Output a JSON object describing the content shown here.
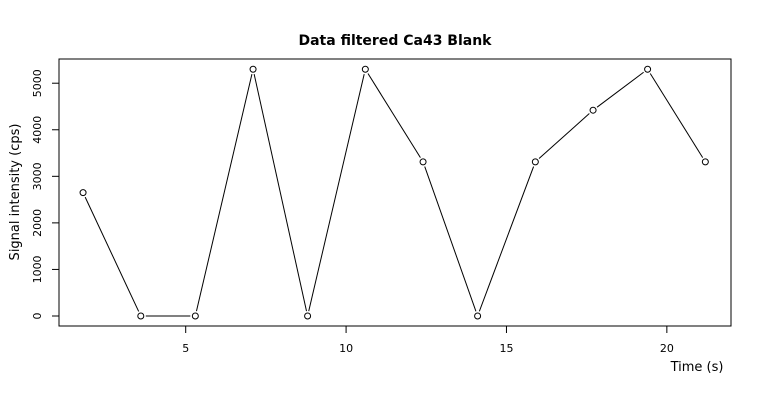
{
  "chart_data": {
    "type": "line",
    "title": "Data filtered Ca43 Blank",
    "xlabel": "Time (s)",
    "ylabel": "Signal intensity (cps)",
    "xlim": [
      1.05,
      22.0
    ],
    "ylim": [
      -215,
      5520
    ],
    "x_ticks": [
      5,
      10,
      15,
      20
    ],
    "x_tick_labels": [
      "5",
      "10",
      "15",
      "20"
    ],
    "y_ticks": [
      0,
      1000,
      2000,
      3000,
      4000,
      5000
    ],
    "y_tick_labels": [
      "0",
      "1000",
      "2000",
      "3000",
      "4000",
      "5000"
    ],
    "grid": false,
    "marker": "open-circle",
    "line_color": "#000000",
    "series": [
      {
        "x": [
          1.8,
          3.6,
          5.3,
          7.1,
          8.8,
          10.6,
          12.4,
          14.1,
          15.9,
          17.7,
          19.4,
          21.2
        ],
        "values": [
          2650,
          0,
          0,
          5300,
          0,
          5300,
          3310,
          0,
          3310,
          4420,
          5300,
          3310
        ]
      }
    ]
  }
}
